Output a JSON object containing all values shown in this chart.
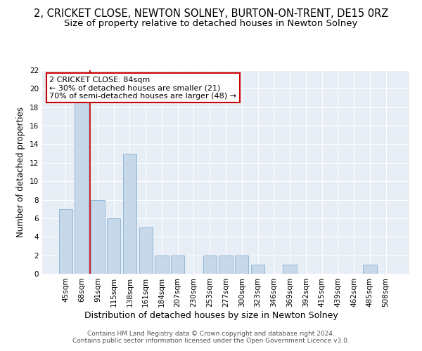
{
  "title": "2, CRICKET CLOSE, NEWTON SOLNEY, BURTON-ON-TRENT, DE15 0RZ",
  "subtitle": "Size of property relative to detached houses in Newton Solney",
  "xlabel": "Distribution of detached houses by size in Newton Solney",
  "ylabel": "Number of detached properties",
  "bar_color": "#c8d8eb",
  "bar_edge_color": "#8fb8d8",
  "categories": [
    "45sqm",
    "68sqm",
    "91sqm",
    "115sqm",
    "138sqm",
    "161sqm",
    "184sqm",
    "207sqm",
    "230sqm",
    "253sqm",
    "277sqm",
    "300sqm",
    "323sqm",
    "346sqm",
    "369sqm",
    "392sqm",
    "415sqm",
    "439sqm",
    "462sqm",
    "485sqm",
    "508sqm"
  ],
  "values": [
    7,
    19,
    8,
    6,
    13,
    5,
    2,
    2,
    0,
    2,
    2,
    2,
    1,
    0,
    1,
    0,
    0,
    0,
    0,
    1,
    0
  ],
  "annotation_box_text": "2 CRICKET CLOSE: 84sqm\n← 30% of detached houses are smaller (21)\n70% of semi-detached houses are larger (48) →",
  "red_line_x": 1.5,
  "ylim": [
    0,
    22
  ],
  "yticks": [
    0,
    2,
    4,
    6,
    8,
    10,
    12,
    14,
    16,
    18,
    20,
    22
  ],
  "background_color": "#e8eef5",
  "grid_color": "#ffffff",
  "footer_text": "Contains HM Land Registry data © Crown copyright and database right 2024.\nContains public sector information licensed under the Open Government Licence v3.0.",
  "title_fontsize": 10.5,
  "subtitle_fontsize": 9.5,
  "xlabel_fontsize": 9,
  "ylabel_fontsize": 8.5,
  "tick_fontsize": 7.5,
  "annotation_fontsize": 8,
  "footer_fontsize": 6.5
}
